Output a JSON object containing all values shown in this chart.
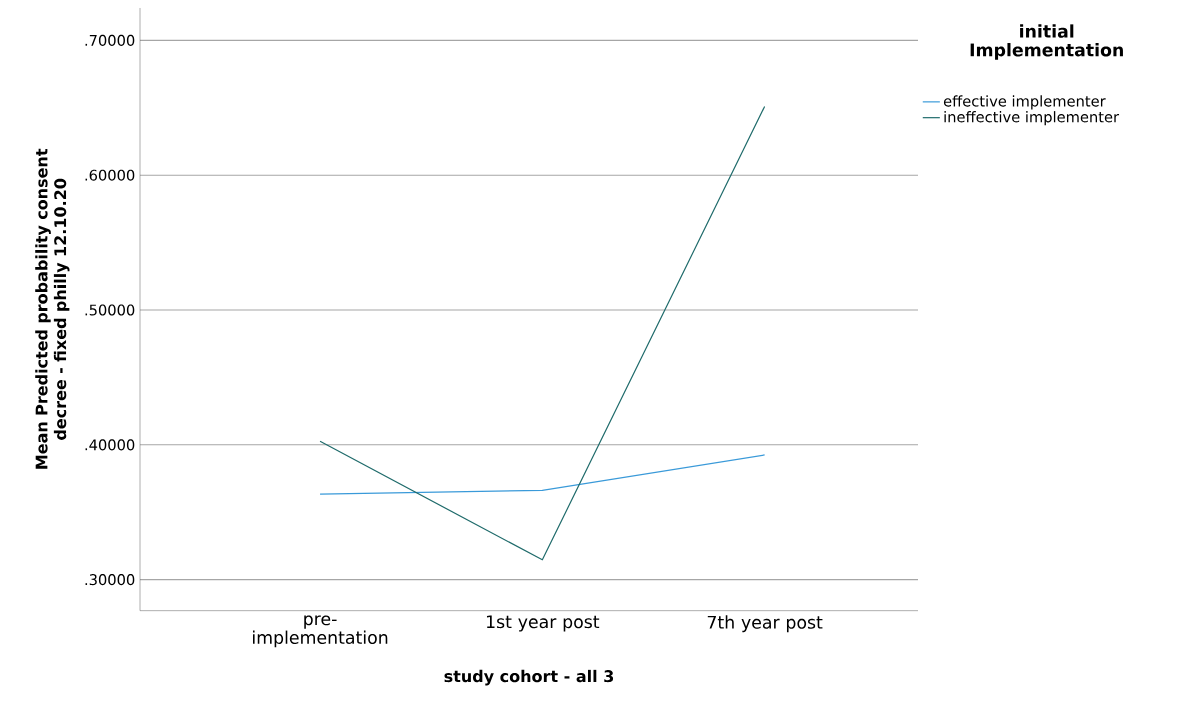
{
  "chart_data": {
    "type": "line",
    "xlabel": "study cohort - all 3",
    "ylabel": "Mean Predicted probability consent decree - fixed philly 12.10.20",
    "legend_title": "initial Implementation",
    "categories": [
      "pre-implementation",
      "1st year post",
      "7th year post"
    ],
    "series": [
      {
        "name": "effective implementer",
        "color": "#3a9ad9",
        "values": [
          0.3635,
          0.3662,
          0.3925
        ]
      },
      {
        "name": "ineffective implementer",
        "color": "#1f6b6b",
        "values": [
          0.4026,
          0.3147,
          0.651
        ]
      }
    ],
    "ylim": [
      0.277,
      0.724
    ],
    "yticks": [
      {
        "value": 0.3,
        "label": ".30000"
      },
      {
        "value": 0.4,
        "label": ".40000"
      },
      {
        "value": 0.5,
        "label": ".50000"
      },
      {
        "value": 0.6,
        "label": ".60000"
      },
      {
        "value": 0.7,
        "label": ".70000"
      }
    ],
    "grid": "y",
    "legend": "top right",
    "marker": "none",
    "line_style": "solid"
  }
}
